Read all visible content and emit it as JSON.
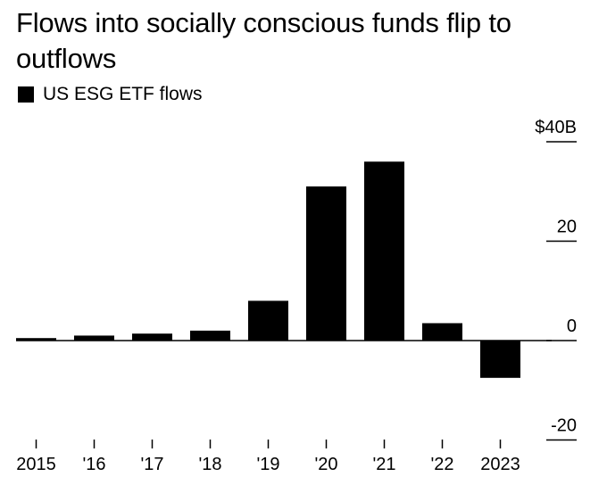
{
  "chart_data": {
    "type": "bar",
    "title": "Flows into socially conscious funds flip to outflows",
    "series": [
      {
        "name": "US ESG ETF flows",
        "color": "#000000",
        "values": [
          0.5,
          1.0,
          1.4,
          2.0,
          8.0,
          31.0,
          36.0,
          3.5,
          -7.5
        ]
      }
    ],
    "categories": [
      "2015",
      "'16",
      "'17",
      "'18",
      "'19",
      "'20",
      "'21",
      "'22",
      "2023"
    ],
    "y_ticks": [
      40,
      20,
      0,
      -20
    ],
    "y_tick_labels": [
      "$40B",
      "20",
      "0",
      "-20"
    ],
    "ylim": [
      -20,
      40
    ],
    "xlabel": "",
    "ylabel": "",
    "legend_position": "top-left"
  }
}
